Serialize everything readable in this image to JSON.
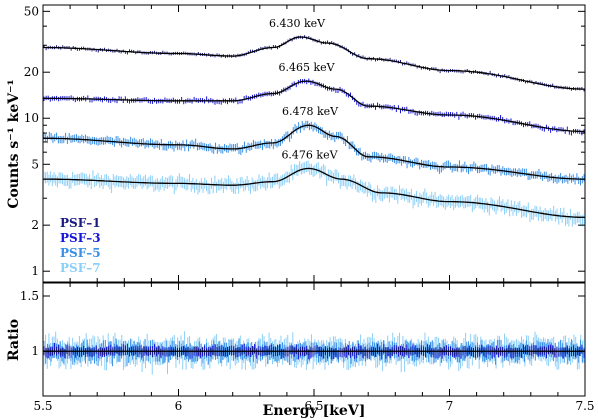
{
  "chart_data": [
    {
      "panel": "spectrum",
      "type": "scatter",
      "ylabel": "Counts s⁻¹ keV⁻¹",
      "xlim": [
        5.5,
        7.5
      ],
      "ylim": [
        0.85,
        55
      ],
      "yscale": "log",
      "yticks": [
        1,
        2,
        5,
        10,
        20,
        50
      ],
      "yticklabels": [
        "1",
        "2",
        "5",
        "10",
        "20",
        "50"
      ],
      "legend_position": "lower-left",
      "series": [
        {
          "name": "PSF–1",
          "color": "#1a1a80",
          "peak_label": "6.430 keV",
          "peak_energy": 6.43,
          "model": {
            "x": [
              5.5,
              6.0,
              6.2,
              6.35,
              6.45,
              6.55,
              6.7,
              7.0,
              7.5
            ],
            "y": [
              29,
              26.5,
              25.5,
              29,
              34,
              31,
              24.5,
              20.5,
              15.5
            ]
          }
        },
        {
          "name": "PSF–3",
          "color": "#1616d6",
          "peak_label": "6.465 keV",
          "peak_energy": 6.465,
          "model": {
            "x": [
              5.5,
              6.0,
              6.2,
              6.35,
              6.47,
              6.58,
              6.7,
              7.0,
              7.5
            ],
            "y": [
              13.5,
              13,
              13,
              14.5,
              17.5,
              15.5,
              12,
              10.5,
              8.2
            ]
          }
        },
        {
          "name": "PSF–5",
          "color": "#3a8fe6",
          "peak_label": "6.478 keV",
          "peak_energy": 6.478,
          "model": {
            "x": [
              5.5,
              6.0,
              6.2,
              6.35,
              6.48,
              6.58,
              6.7,
              7.0,
              7.5
            ],
            "y": [
              7.4,
              6.7,
              6.3,
              6.9,
              9.0,
              7.6,
              5.6,
              4.8,
              4.0
            ]
          }
        },
        {
          "name": "PSF–7",
          "color": "#8ccff7",
          "peak_label": "6.476 keV",
          "peak_energy": 6.476,
          "model": {
            "x": [
              5.5,
              6.0,
              6.2,
              6.35,
              6.48,
              6.6,
              6.75,
              7.0,
              7.5
            ],
            "y": [
              4.0,
              3.75,
              3.65,
              3.85,
              4.7,
              4.0,
              3.25,
              2.85,
              2.25
            ]
          }
        }
      ]
    },
    {
      "panel": "ratio",
      "type": "scatter",
      "xlabel": "Energy [keV]",
      "ylabel": "Ratio",
      "xlim": [
        5.5,
        7.5
      ],
      "ylim": [
        0.72,
        1.65
      ],
      "yscale": "log",
      "xticks": [
        5.5,
        6,
        6.5,
        7,
        7.5
      ],
      "xticklabels": [
        "5.5",
        "6",
        "6.5",
        "7",
        "7.5"
      ],
      "yticks": [
        1,
        1.5
      ],
      "yticklabels": [
        "1",
        "1.5"
      ],
      "reference_line": 1
    }
  ]
}
